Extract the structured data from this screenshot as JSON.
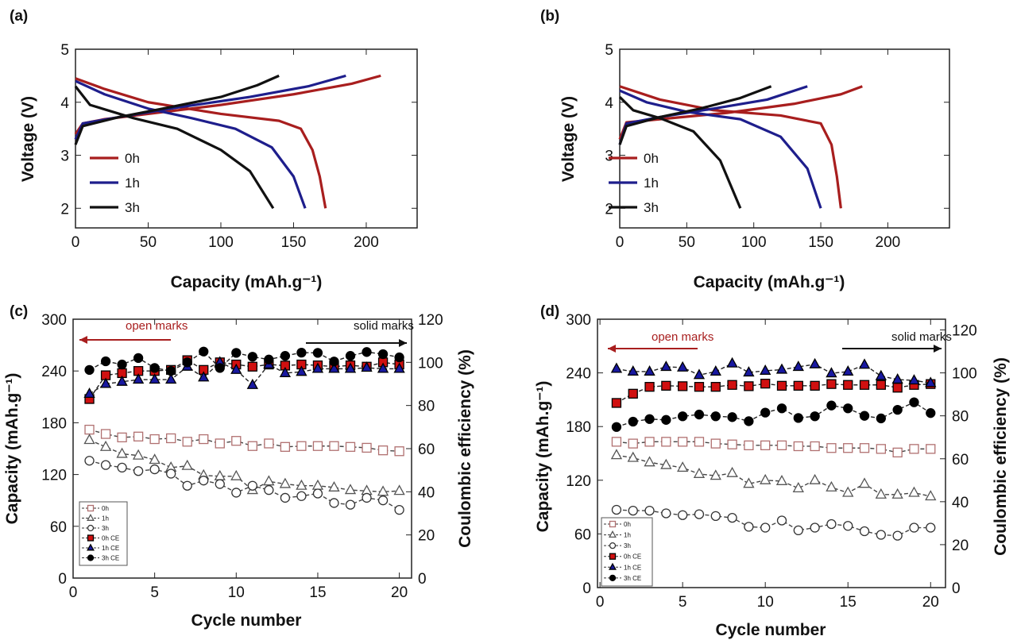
{
  "chart_data": [
    {
      "panel": "(a)",
      "type": "line",
      "xlabel": "Capacity (mAh.g⁻¹)",
      "ylabel": "Voltage (V)",
      "xlim": [
        0,
        235
      ],
      "ylim": [
        1.63,
        5
      ],
      "xticks": [
        0,
        50,
        100,
        150,
        200
      ],
      "yticks": [
        2,
        3,
        4,
        5
      ],
      "legend_position": "left-bottom",
      "series": [
        {
          "name": "0h",
          "color": "#a81e1e",
          "charge": [
            [
              0,
              3.4
            ],
            [
              5,
              3.6
            ],
            [
              20,
              3.68
            ],
            [
              50,
              3.78
            ],
            [
              100,
              3.95
            ],
            [
              150,
              4.15
            ],
            [
              190,
              4.35
            ],
            [
              210,
              4.5
            ]
          ],
          "discharge": [
            [
              0,
              4.45
            ],
            [
              20,
              4.25
            ],
            [
              50,
              4.0
            ],
            [
              100,
              3.78
            ],
            [
              140,
              3.65
            ],
            [
              155,
              3.5
            ],
            [
              163,
              3.1
            ],
            [
              168,
              2.6
            ],
            [
              172,
              2.0
            ]
          ]
        },
        {
          "name": "1h",
          "color": "#1e1e8c",
          "charge": [
            [
              0,
              3.3
            ],
            [
              5,
              3.6
            ],
            [
              30,
              3.72
            ],
            [
              70,
              3.9
            ],
            [
              120,
              4.1
            ],
            [
              160,
              4.3
            ],
            [
              186,
              4.5
            ]
          ],
          "discharge": [
            [
              0,
              4.4
            ],
            [
              20,
              4.15
            ],
            [
              50,
              3.88
            ],
            [
              80,
              3.7
            ],
            [
              110,
              3.5
            ],
            [
              135,
              3.15
            ],
            [
              150,
              2.6
            ],
            [
              158,
              2.0
            ]
          ]
        },
        {
          "name": "3h",
          "color": "#111111",
          "charge": [
            [
              0,
              3.2
            ],
            [
              5,
              3.55
            ],
            [
              30,
              3.72
            ],
            [
              60,
              3.88
            ],
            [
              100,
              4.1
            ],
            [
              125,
              4.32
            ],
            [
              140,
              4.5
            ]
          ],
          "discharge": [
            [
              0,
              4.3
            ],
            [
              10,
              3.95
            ],
            [
              40,
              3.7
            ],
            [
              70,
              3.5
            ],
            [
              100,
              3.1
            ],
            [
              120,
              2.7
            ],
            [
              136,
              2.0
            ]
          ]
        }
      ]
    },
    {
      "panel": "(b)",
      "type": "line",
      "xlabel": "Capacity (mAh.g⁻¹)",
      "ylabel": "Voltage (V)",
      "xlim": [
        0,
        246
      ],
      "ylim": [
        1.63,
        5
      ],
      "xticks": [
        0,
        50,
        100,
        150,
        200
      ],
      "yticks": [
        2,
        3,
        4,
        5
      ],
      "legend_position": "left-bottom",
      "series": [
        {
          "name": "0h",
          "color": "#a81e1e",
          "charge": [
            [
              0,
              3.3
            ],
            [
              5,
              3.62
            ],
            [
              30,
              3.68
            ],
            [
              80,
              3.8
            ],
            [
              130,
              3.97
            ],
            [
              165,
              4.15
            ],
            [
              181,
              4.3
            ]
          ],
          "discharge": [
            [
              0,
              4.3
            ],
            [
              30,
              4.05
            ],
            [
              70,
              3.85
            ],
            [
              120,
              3.75
            ],
            [
              150,
              3.6
            ],
            [
              158,
              3.2
            ],
            [
              162,
              2.6
            ],
            [
              165,
              2.0
            ]
          ]
        },
        {
          "name": "1h",
          "color": "#1e1e8c",
          "charge": [
            [
              0,
              3.2
            ],
            [
              5,
              3.6
            ],
            [
              30,
              3.72
            ],
            [
              70,
              3.88
            ],
            [
              110,
              4.05
            ],
            [
              140,
              4.3
            ]
          ],
          "discharge": [
            [
              0,
              4.22
            ],
            [
              20,
              4.0
            ],
            [
              50,
              3.82
            ],
            [
              90,
              3.68
            ],
            [
              120,
              3.35
            ],
            [
              140,
              2.75
            ],
            [
              150,
              2.0
            ]
          ]
        },
        {
          "name": "3h",
          "color": "#111111",
          "charge": [
            [
              0,
              3.2
            ],
            [
              5,
              3.55
            ],
            [
              30,
              3.72
            ],
            [
              60,
              3.88
            ],
            [
              90,
              4.08
            ],
            [
              113,
              4.3
            ]
          ],
          "discharge": [
            [
              0,
              4.1
            ],
            [
              10,
              3.85
            ],
            [
              30,
              3.7
            ],
            [
              55,
              3.45
            ],
            [
              75,
              2.9
            ],
            [
              90,
              2.0
            ]
          ]
        }
      ]
    },
    {
      "panel": "(c)",
      "type": "line",
      "xlabel": "Cycle number",
      "ylabel": "Capacity (mAh.g⁻¹)",
      "y2label": "Coulombic efficiency (%)",
      "xlim": [
        0,
        20.75
      ],
      "ylim": [
        0,
        300
      ],
      "y2lim": [
        0,
        120
      ],
      "xticks": [
        0,
        5,
        10,
        15,
        20
      ],
      "yticks": [
        0,
        60,
        120,
        180,
        240,
        300
      ],
      "y2ticks": [
        0,
        20,
        40,
        60,
        80,
        100,
        120
      ],
      "annotations": [
        "open marks",
        "solid marks"
      ],
      "legend_position": "bottom-left",
      "x": [
        1,
        2,
        3,
        4,
        5,
        6,
        7,
        8,
        9,
        10,
        11,
        12,
        13,
        14,
        15,
        16,
        17,
        18,
        19,
        20
      ],
      "series": [
        {
          "name": "0h",
          "axis": "left",
          "marker": "open-square",
          "color": "#b07070",
          "values": [
            172,
            167,
            163,
            164,
            161,
            162,
            158,
            161,
            156,
            159,
            153,
            156,
            152,
            153,
            153,
            153,
            152,
            151,
            148,
            147
          ]
        },
        {
          "name": "1h",
          "axis": "left",
          "marker": "open-triangle",
          "color": "#555555",
          "values": [
            160,
            152,
            144,
            142,
            137,
            128,
            130,
            119,
            118,
            118,
            102,
            112,
            109,
            107,
            107,
            105,
            102,
            101,
            100,
            101
          ]
        },
        {
          "name": "3h",
          "axis": "left",
          "marker": "open-circle",
          "color": "#333333",
          "values": [
            136,
            131,
            128,
            124,
            126,
            121,
            107,
            113,
            109,
            99,
            107,
            102,
            93,
            95,
            98,
            87,
            85,
            93,
            90,
            79
          ]
        },
        {
          "name": "0h CE",
          "axis": "right",
          "marker": "filled-square",
          "color": "#d01010",
          "values": [
            83,
            94,
            95,
            96,
            96,
            96.5,
            101,
            96.5,
            100,
            99,
            98,
            99,
            98.5,
            99,
            98.6,
            98,
            98.6,
            98,
            100,
            99
          ]
        },
        {
          "name": "1h CE",
          "axis": "right",
          "marker": "filled-triangle",
          "color": "#1818a0",
          "values": [
            85.4,
            90,
            91,
            92,
            92,
            92,
            98,
            93,
            100,
            96.5,
            89.5,
            99,
            95,
            95.6,
            97,
            97,
            97,
            97.5,
            97,
            97
          ]
        },
        {
          "name": "3h CE",
          "axis": "right",
          "marker": "filled-circle",
          "color": "#000000",
          "values": [
            96.5,
            100.5,
            99,
            102,
            97.4,
            96,
            100,
            105,
            97.4,
            104.4,
            102.6,
            101.3,
            103,
            104.5,
            104.4,
            100.4,
            103,
            104.8,
            103.8,
            102.3
          ]
        }
      ]
    },
    {
      "panel": "(d)",
      "type": "line",
      "xlabel": "Cycle number",
      "ylabel": "Capacity (mAh.g⁻¹)",
      "y2label": "Coulombic efficiency (%)",
      "xlim": [
        -0.15,
        20.9
      ],
      "ylim": [
        0,
        300
      ],
      "y2lim": [
        0,
        125
      ],
      "xticks": [
        0,
        5,
        10,
        15,
        20
      ],
      "yticks": [
        0,
        60,
        120,
        180,
        240,
        300
      ],
      "y2ticks": [
        0,
        20,
        40,
        60,
        80,
        100,
        120
      ],
      "annotations": [
        "open marks",
        "solid marks"
      ],
      "legend_position": "bottom-left",
      "x": [
        1,
        2,
        3,
        4,
        5,
        6,
        7,
        8,
        9,
        10,
        11,
        12,
        13,
        14,
        15,
        16,
        17,
        18,
        19,
        20
      ],
      "series": [
        {
          "name": "0h",
          "axis": "left",
          "marker": "open-square",
          "color": "#b07070",
          "values": [
            163,
            161,
            163,
            163,
            163,
            163,
            161,
            160,
            159,
            159,
            159,
            158,
            158,
            156,
            156,
            156,
            155,
            151,
            155,
            155
          ]
        },
        {
          "name": "1h",
          "axis": "left",
          "marker": "open-triangle",
          "color": "#555555",
          "values": [
            148,
            145,
            140,
            137,
            134,
            127,
            125,
            128,
            116,
            120,
            119,
            111,
            120,
            112,
            106,
            116,
            104,
            104,
            106,
            102
          ]
        },
        {
          "name": "3h",
          "axis": "left",
          "marker": "open-circle",
          "color": "#333333",
          "values": [
            87,
            86,
            86,
            83,
            81,
            82,
            80,
            78,
            68,
            67,
            75,
            64,
            67,
            71,
            69,
            63,
            59,
            58,
            67,
            67
          ]
        },
        {
          "name": "0h CE",
          "axis": "right",
          "marker": "filled-square",
          "color": "#d01010",
          "values": [
            86,
            90.3,
            93.5,
            94,
            93.8,
            93.5,
            93.5,
            94.4,
            93.8,
            95,
            94,
            94,
            94,
            94.8,
            94.4,
            94.4,
            94.4,
            93.1,
            94.4,
            94.8
          ]
        },
        {
          "name": "1h CE",
          "axis": "right",
          "marker": "filled-triangle",
          "color": "#1818a0",
          "values": [
            101.9,
            100.6,
            100.6,
            102.8,
            102.5,
            99,
            100.6,
            104.4,
            100.2,
            101,
            101.5,
            102.8,
            104,
            99.8,
            100.6,
            103.8,
            98.5,
            96.9,
            96.5,
            95.3
          ]
        },
        {
          "name": "3h CE",
          "axis": "right",
          "marker": "filled-circle",
          "color": "#000000",
          "values": [
            74.8,
            77.3,
            78.5,
            78.1,
            79.8,
            80.6,
            79.8,
            79.4,
            77.5,
            81.5,
            83.5,
            79,
            79.8,
            84.8,
            83.5,
            80,
            78.8,
            82.8,
            86.3,
            81.3
          ]
        }
      ]
    }
  ]
}
